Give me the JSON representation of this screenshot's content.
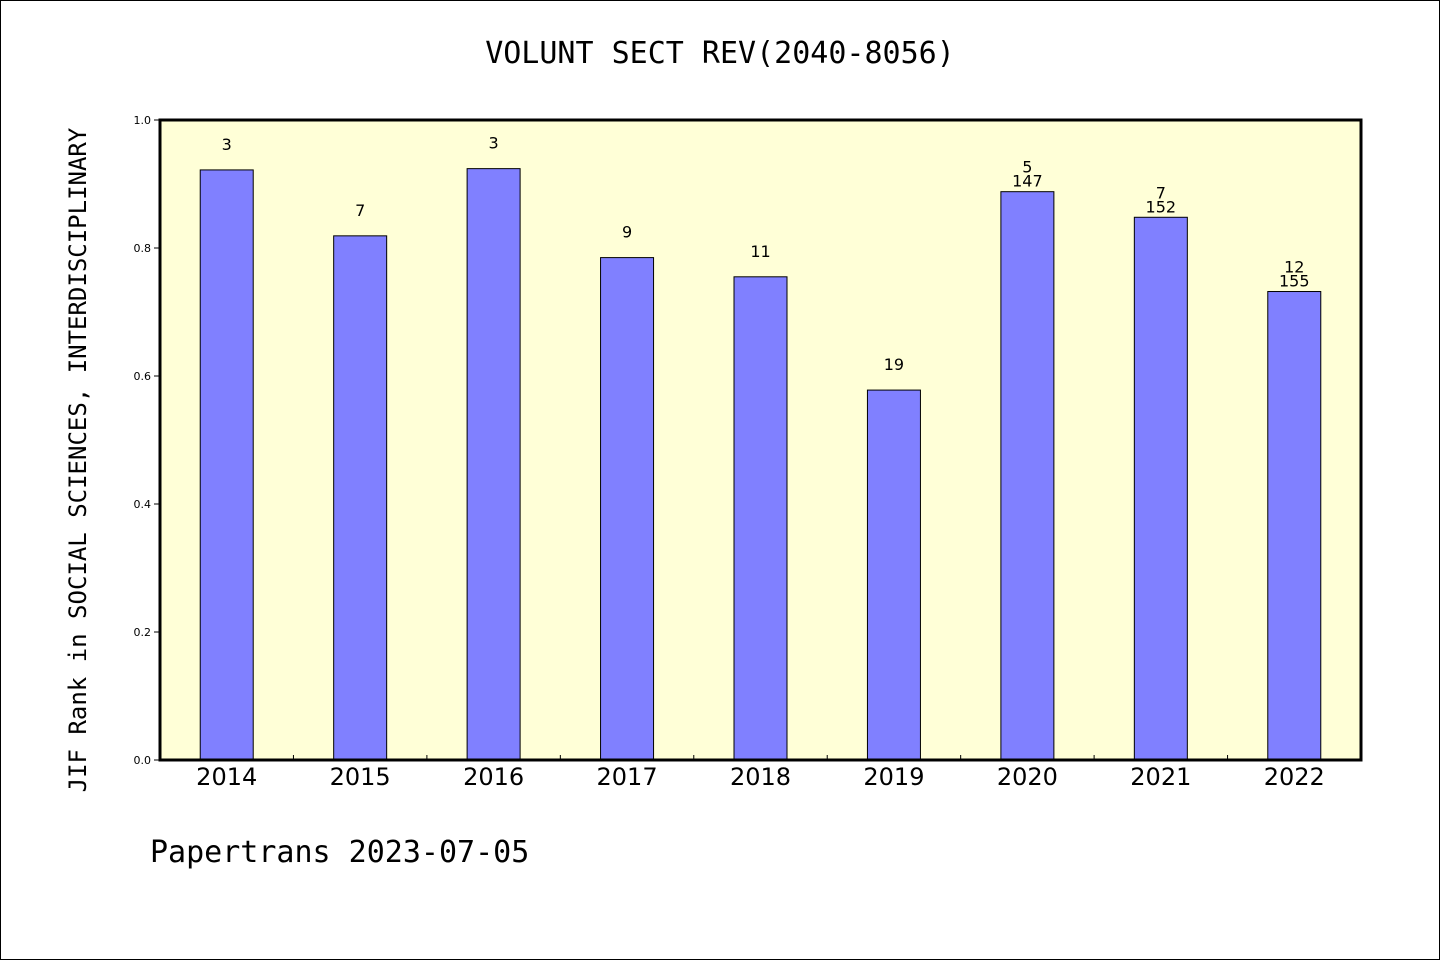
{
  "chart_data": {
    "type": "bar",
    "title": "VOLUNT SECT REV(2040-8056)",
    "ylabel": "JIF Rank in SOCIAL SCIENCES, INTERDISCIPLINARY",
    "xlabel": "",
    "ylim": [
      0,
      1.0
    ],
    "yticks": [
      "0.0",
      "0.2",
      "0.4",
      "0.6",
      "0.8",
      "1.0"
    ],
    "categories": [
      "2014",
      "2015",
      "2016",
      "2017",
      "2018",
      "2019",
      "2020",
      "2021",
      "2022"
    ],
    "values": [
      0.922,
      0.819,
      0.924,
      0.785,
      0.755,
      0.578,
      0.888,
      0.848,
      0.732
    ],
    "rank_labels": [
      "3",
      "7",
      "3",
      "9",
      "11",
      "19",
      "5",
      "7",
      "12"
    ],
    "total_labels": [
      "",
      "",
      "",
      "",
      "",
      "",
      "147",
      "152",
      "155"
    ],
    "grid": false,
    "colors": {
      "bar": "#8080ff",
      "plot_background": "#ffffd7",
      "bar_edge": "#000000"
    }
  },
  "footer": "Papertrans 2023-07-05"
}
